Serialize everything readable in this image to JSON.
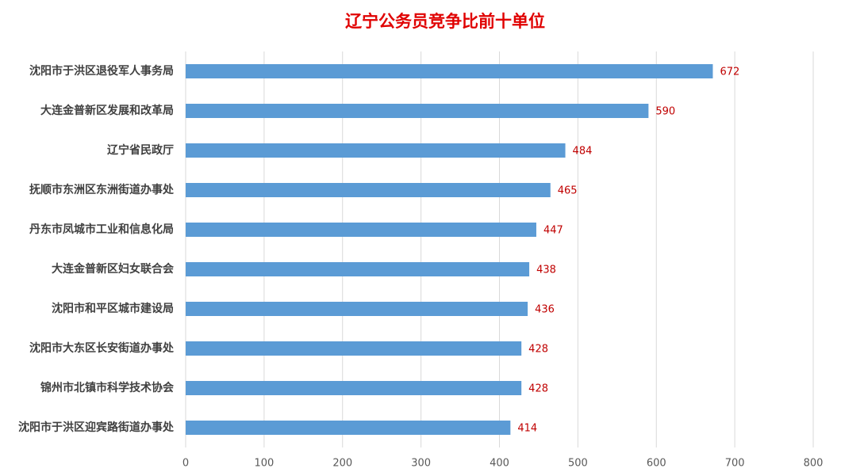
{
  "chart_data": {
    "type": "bar",
    "orientation": "horizontal",
    "title": "辽宁公务员竞争比前十单位",
    "categories": [
      "沈阳市于洪区退役军人事务局",
      "大连金普新区发展和改革局",
      "辽宁省民政厅",
      "抚顺市东洲区东洲街道办事处",
      "丹东市凤城市工业和信息化局",
      "大连金普新区妇女联合会",
      "沈阳市和平区城市建设局",
      "沈阳市大东区长安街道办事处",
      "锦州市北镇市科学技术协会",
      "沈阳市于洪区迎宾路街道办事处"
    ],
    "values": [
      672,
      590,
      484,
      465,
      447,
      438,
      436,
      428,
      428,
      414
    ],
    "color": "#5b9bd5",
    "label_color": "#c00000",
    "xlim": [
      0,
      800
    ],
    "xticks": [
      0,
      100,
      200,
      300,
      400,
      500,
      600,
      700,
      800
    ],
    "grid": true
  }
}
